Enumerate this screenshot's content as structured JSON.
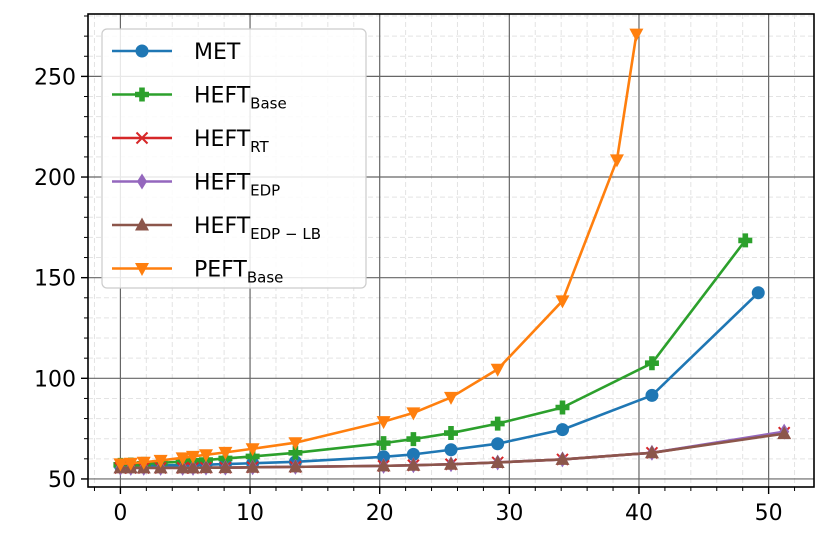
{
  "chart_data": {
    "type": "line",
    "title": "",
    "xlabel": "",
    "ylabel": "",
    "xlim": [
      -2.5,
      53.5
    ],
    "ylim": [
      46,
      281
    ],
    "xticks": [
      0,
      10,
      20,
      30,
      40,
      50
    ],
    "yticks": [
      50,
      100,
      150,
      200,
      250
    ],
    "grid": "major solid, minor dashed",
    "legend_position": "top-left",
    "series": [
      {
        "name": "MET",
        "label_main": "MET",
        "label_sub": "",
        "color": "#1f77b4",
        "marker": "circle",
        "x": [
          0,
          0.8,
          1.8,
          3.1,
          4.8,
          5.6,
          6.6,
          8.1,
          10.2,
          13.5,
          20.3,
          22.6,
          25.5,
          29.1,
          34.1,
          41.0,
          49.2
        ],
        "y": [
          56.5,
          56.5,
          56.6,
          56.7,
          56.9,
          57.0,
          57.1,
          57.4,
          57.8,
          58.5,
          61.0,
          62.2,
          64.5,
          67.5,
          74.5,
          91.5,
          142.5
        ]
      },
      {
        "name": "HEFT_Base",
        "label_main": "HEFT",
        "label_sub": "Base",
        "color": "#2ca02c",
        "marker": "plus",
        "x": [
          0,
          0.8,
          1.8,
          3.1,
          4.8,
          5.6,
          6.6,
          8.1,
          10.2,
          13.5,
          20.3,
          22.6,
          25.5,
          29.1,
          34.1,
          41.0,
          48.2
        ],
        "y": [
          57.0,
          57.2,
          57.5,
          58.0,
          58.6,
          59.0,
          59.4,
          60.2,
          61.2,
          63.0,
          67.8,
          69.8,
          72.8,
          77.5,
          85.5,
          107.5,
          168.5
        ]
      },
      {
        "name": "HEFT_RT",
        "label_main": "HEFT",
        "label_sub": "RT",
        "color": "#d62728",
        "marker": "x",
        "x": [
          0,
          0.8,
          1.8,
          3.1,
          4.8,
          5.6,
          6.6,
          8.1,
          10.2,
          13.5,
          20.3,
          22.6,
          25.5,
          29.1,
          34.1,
          41.0,
          51.2
        ],
        "y": [
          55.5,
          55.5,
          55.5,
          55.5,
          55.5,
          55.5,
          55.6,
          55.6,
          55.8,
          56.0,
          56.5,
          56.8,
          57.3,
          58.2,
          59.7,
          63.0,
          73.0
        ]
      },
      {
        "name": "HEFT_EDP",
        "label_main": "HEFT",
        "label_sub": "EDP",
        "color": "#9467bd",
        "marker": "thin_diamond",
        "x": [
          0,
          0.8,
          1.8,
          3.1,
          4.8,
          5.6,
          6.6,
          8.1,
          10.2,
          13.5,
          20.3,
          22.6,
          25.5,
          29.1,
          34.1,
          41.0,
          51.2
        ],
        "y": [
          55.5,
          55.5,
          55.5,
          55.5,
          55.5,
          55.5,
          55.6,
          55.6,
          55.8,
          56.0,
          56.5,
          56.8,
          57.3,
          58.2,
          59.7,
          63.0,
          73.5
        ]
      },
      {
        "name": "HEFT_EDP-LB",
        "label_main": "HEFT",
        "label_sub": "EDP − LB",
        "color": "#8c564b",
        "marker": "triangle_up",
        "x": [
          0,
          0.8,
          1.8,
          3.1,
          4.8,
          5.6,
          6.6,
          8.1,
          10.2,
          13.5,
          20.3,
          22.6,
          25.5,
          29.1,
          34.1,
          41.0,
          51.2
        ],
        "y": [
          55.5,
          55.5,
          55.5,
          55.5,
          55.5,
          55.5,
          55.6,
          55.6,
          55.8,
          56.0,
          56.5,
          56.8,
          57.3,
          58.2,
          59.7,
          63.0,
          72.5
        ]
      },
      {
        "name": "PEFT_Base",
        "label_main": "PEFT",
        "label_sub": "Base",
        "color": "#ff7f0e",
        "marker": "triangle_down",
        "x": [
          0,
          0.8,
          1.8,
          3.1,
          4.8,
          5.6,
          6.6,
          8.1,
          10.2,
          13.5,
          20.3,
          22.6,
          25.5,
          29.1,
          34.1,
          38.3,
          39.8
        ],
        "y": [
          57.5,
          57.8,
          58.3,
          59.2,
          60.5,
          61.2,
          62.0,
          63.2,
          65.0,
          68.0,
          78.5,
          82.8,
          90.5,
          104.5,
          138.5,
          208.5,
          271.0
        ]
      }
    ]
  }
}
